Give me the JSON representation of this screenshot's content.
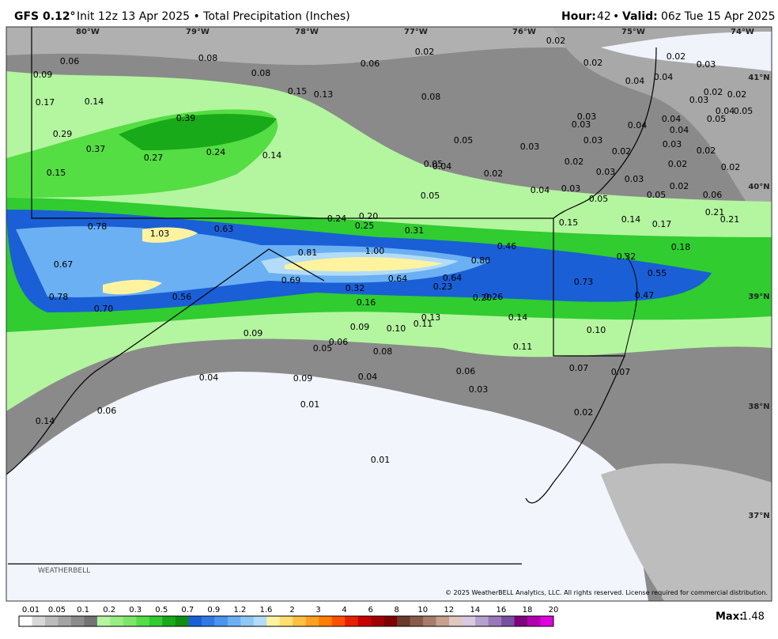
{
  "header": {
    "model": "GFS 0.12°",
    "info": "Init 12z 13 Apr 2025 • Total Precipitation (Inches)",
    "hour_label": "Hour:",
    "hour": "42",
    "separator": "•",
    "valid_label": "Valid:",
    "valid": "06z Tue 15 Apr 2025"
  },
  "longitudes": [
    "80°W",
    "79°W",
    "78°W",
    "77°W",
    "76°W",
    "75°W",
    "74°W"
  ],
  "latitudes": [
    "41°N",
    "40°N",
    "39°N",
    "38°N",
    "37°N"
  ],
  "map_labels": [
    "0.06",
    "0.09",
    "0.08",
    "0.08",
    "0.06",
    "0.02",
    "0.02",
    "0.02",
    "0.02",
    "0.03",
    "0.17",
    "0.14",
    "0.15",
    "0.13",
    "0.08",
    "0.04",
    "0.04",
    "0.02",
    "0.03",
    "0.02",
    "0.39",
    "0.03",
    "0.03",
    "0.04",
    "0.04",
    "0.04",
    "0.29",
    "0.37",
    "0.27",
    "0.24",
    "0.14",
    "0.05",
    "0.03",
    "0.03",
    "0.02",
    "0.03",
    "0.02",
    "0.15",
    "0.05",
    "0.04",
    "0.02",
    "0.02",
    "0.03",
    "0.03",
    "0.02",
    "0.02",
    "0.05",
    "0.04",
    "0.03",
    "0.05",
    "0.05",
    "0.02",
    "0.06",
    "0.24",
    "0.20",
    "0.25",
    "0.31",
    "0.78",
    "1.03",
    "0.63",
    "0.15",
    "0.14",
    "0.17",
    "0.21",
    "0.21",
    "0.81",
    "1.00",
    "0.46",
    "0.80",
    "0.67",
    "0.32",
    "0.18",
    "0.69",
    "0.64",
    "0.64",
    "0.73",
    "0.55",
    "0.32",
    "0.23",
    "0.20",
    "0.26",
    "0.78",
    "0.56",
    "0.47",
    "0.70",
    "0.16",
    "0.13",
    "0.11",
    "0.14",
    "0.09",
    "0.10",
    "0.10",
    "0.09",
    "0.06",
    "0.05",
    "0.08",
    "0.11",
    "0.04",
    "0.09",
    "0.04",
    "0.06",
    "0.07",
    "0.07",
    "0.03",
    "0.06",
    "0.01",
    "0.02",
    "0.14",
    "0.01",
    "0.04",
    "0.05",
    "0.05"
  ],
  "colorbar": {
    "labels": [
      "0.01",
      "0.05",
      "0.1",
      "0.2",
      "0.3",
      "0.5",
      "0.7",
      "0.9",
      "1.2",
      "1.6",
      "2",
      "3",
      "4",
      "6",
      "8",
      "10",
      "12",
      "14",
      "16",
      "18",
      "20"
    ],
    "colors": [
      "#ffffff",
      "#d8d8d8",
      "#bcbcbc",
      "#a4a4a4",
      "#8c8c8c",
      "#747474",
      "#b4f5a0",
      "#98ee80",
      "#7de66a",
      "#55dd44",
      "#30cc30",
      "#18aa18",
      "#0e8e10",
      "#1a5fd6",
      "#2f7ae6",
      "#4a95ee",
      "#6bb0f2",
      "#8fc8f5",
      "#b2dcf7",
      "#fff3a0",
      "#ffe070",
      "#ffc040",
      "#ffa020",
      "#ff8000",
      "#ff5000",
      "#e82000",
      "#c80000",
      "#a00000",
      "#800000",
      "#6a3a2a",
      "#8a5a4a",
      "#a87c6c",
      "#c8a090",
      "#e0c8c0",
      "#d8c8e0",
      "#b8a0cc",
      "#9878b8",
      "#7850a0",
      "#800080",
      "#b000b0",
      "#e000e0"
    ]
  },
  "max_label": "Max:",
  "max_value": "1.48",
  "copyright": "© 2025 WeatherBELL Analytics, LLC. All rights reserved. License required for commercial distribution.",
  "logo": "WEATHERBELL"
}
